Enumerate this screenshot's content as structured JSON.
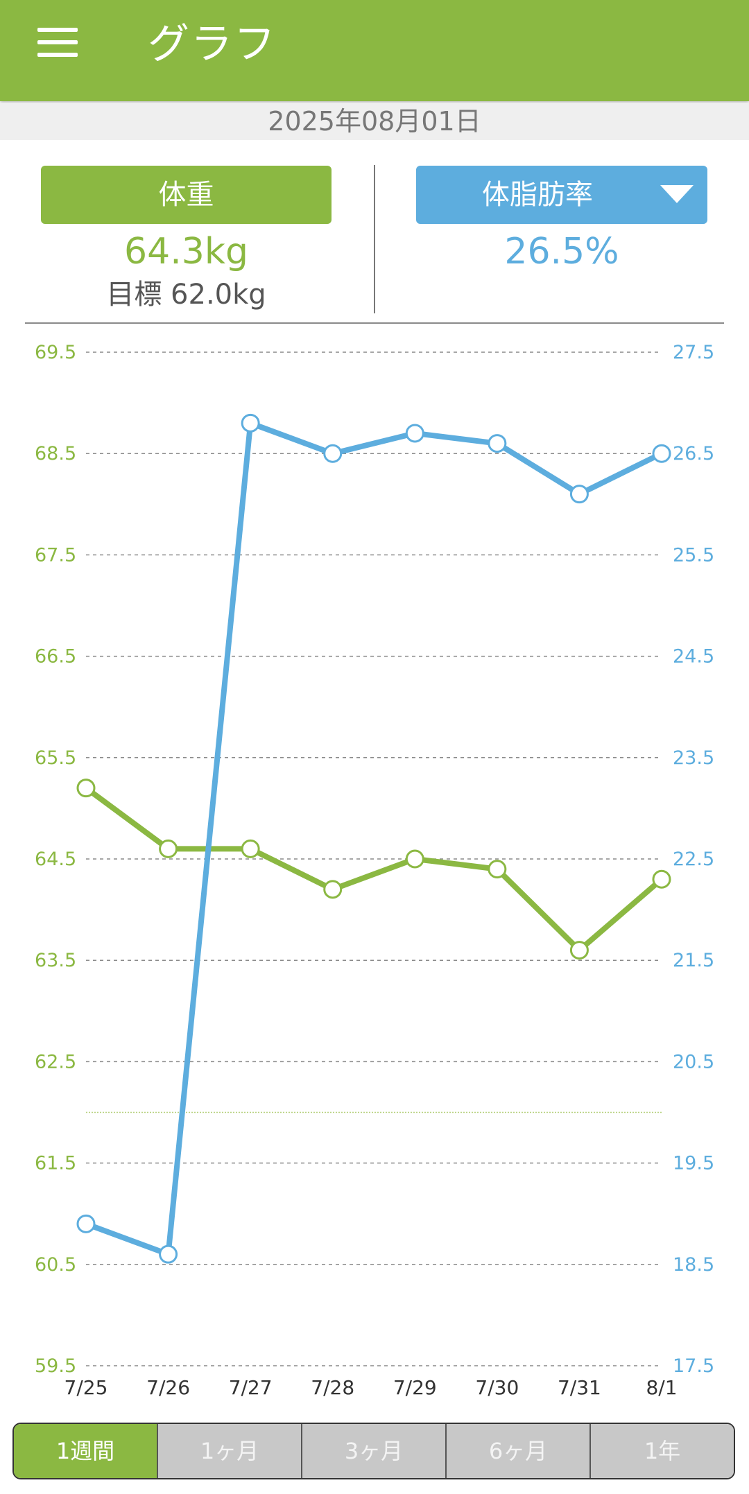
{
  "header": {
    "title": "グラフ",
    "menu_icon": "hamburger-menu-icon"
  },
  "date": "2025年08月01日",
  "weight_card": {
    "button_label": "体重",
    "value": "64.3kg",
    "goal": "目標 62.0kg"
  },
  "fat_card": {
    "button_label": "体脂肪率",
    "value": "26.5%",
    "dropdown_icon": "triangle-down-icon"
  },
  "colors": {
    "weight": "#8bb842",
    "fat": "#5dadde",
    "appbar": "#8bb842"
  },
  "chart_data": {
    "type": "line",
    "x": [
      "7/25",
      "7/26",
      "7/27",
      "7/28",
      "7/29",
      "7/30",
      "7/31",
      "8/1"
    ],
    "y_left_ticks": [
      "69.5",
      "68.5",
      "67.5",
      "66.5",
      "65.5",
      "64.5",
      "63.5",
      "62.5",
      "61.5",
      "60.5",
      "59.5"
    ],
    "y_right_ticks": [
      "27.5",
      "26.5",
      "25.5",
      "24.5",
      "23.5",
      "22.5",
      "21.5",
      "20.5",
      "19.5",
      "18.5",
      "17.5"
    ],
    "y_left_range": [
      59.5,
      69.5
    ],
    "y_right_range": [
      17.5,
      27.5
    ],
    "goal_line_left": 62.0,
    "grid": true,
    "series": [
      {
        "axis": "left",
        "color": "#8bb842",
        "values": [
          65.2,
          64.6,
          64.6,
          64.2,
          64.5,
          64.4,
          63.6,
          64.3
        ]
      },
      {
        "axis": "right",
        "color": "#5dadde",
        "values": [
          18.9,
          18.6,
          26.8,
          26.5,
          26.7,
          26.6,
          26.1,
          26.5
        ]
      }
    ]
  },
  "period_tabs": [
    {
      "label": "1週間",
      "active": true
    },
    {
      "label": "1ヶ月",
      "active": false
    },
    {
      "label": "3ヶ月",
      "active": false
    },
    {
      "label": "6ヶ月",
      "active": false
    },
    {
      "label": "1年",
      "active": false
    }
  ]
}
